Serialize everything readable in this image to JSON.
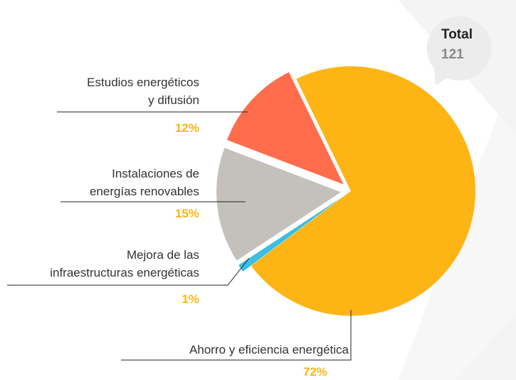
{
  "chart_data": {
    "type": "pie",
    "total": {
      "label": "Total",
      "value": 121
    },
    "categories": [
      "Ahorro y eficiencia energética",
      "Mejora de las\ninfraestructuras energéticas",
      "Instalaciones de\nenergías renovables",
      "Estudios energéticos\ny difusión"
    ],
    "values": [
      72,
      1,
      15,
      12
    ],
    "value_labels": [
      "72%",
      "1%",
      "15%",
      "12%"
    ],
    "colors": [
      "#fdb515",
      "#3ebde0",
      "#c4c0bc",
      "#ff6d4d"
    ]
  }
}
